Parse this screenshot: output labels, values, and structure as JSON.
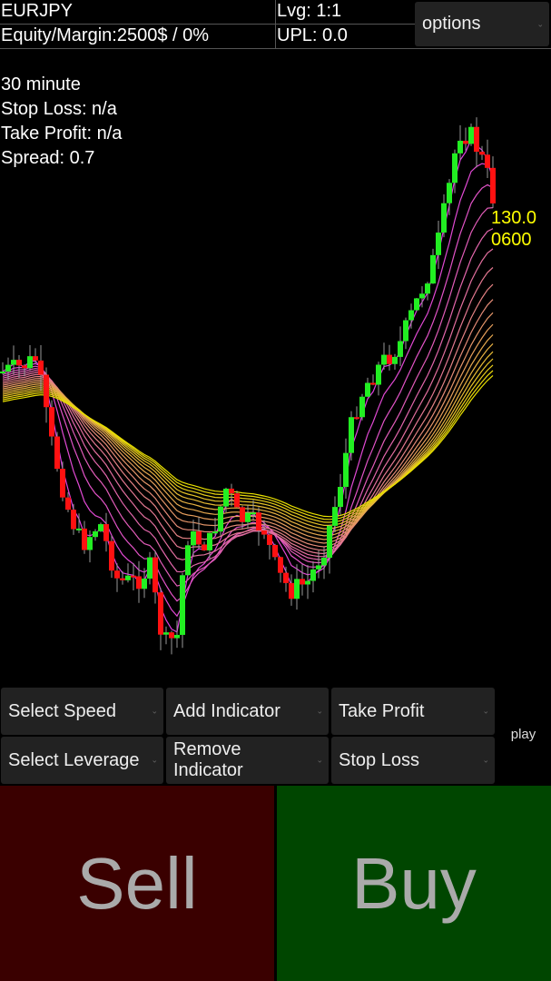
{
  "header": {
    "symbol": "EURJPY",
    "equity_margin": "Equity/Margin:2500$ / 0%",
    "leverage": "Lvg: 1:1",
    "upl": "UPL: 0.0",
    "options_label": "options"
  },
  "chart_info": {
    "timeframe": "30 minute",
    "stop_loss": "Stop Loss: n/a",
    "take_profit": "Take Profit: n/a",
    "spread": "Spread: 0.7",
    "current_price_line1": "130.0",
    "current_price_line2": "0600"
  },
  "colors": {
    "bull_candle": "#22ee22",
    "bear_candle": "#ff1111",
    "ma_fast": "#e040e0",
    "ma_slow": "#e8e000",
    "price_label": "#ffff00",
    "sell_bg": "#3a0000",
    "buy_bg": "#004600"
  },
  "controls": {
    "select_speed": "Select Speed",
    "add_indicator": "Add Indicator",
    "take_profit": "Take Profit",
    "select_leverage": "Select Leverage",
    "remove_indicator": "Remove Indicator",
    "stop_loss": "Stop Loss",
    "play": "play"
  },
  "actions": {
    "sell": "Sell",
    "buy": "Buy"
  }
}
